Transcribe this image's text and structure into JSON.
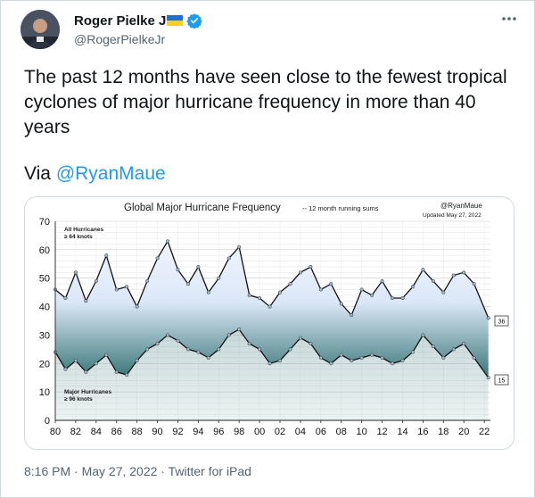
{
  "tweet": {
    "author_name": "Roger Pielke Jr.",
    "author_handle": "@RogerPielkeJr",
    "text": "The past 12 months have seen close to the fewest tropical cyclones of major hurricane frequency in more than 40 years",
    "via_label": "Via",
    "via_mention": "@RyanMaue",
    "timestamp": "8:16 PM · May 27, 2022 · Twitter for iPad",
    "colors": {
      "link": "#1d9bf0",
      "muted": "#536471",
      "flag_blue": "#1f6fd1",
      "flag_yellow": "#f6d21c",
      "verified": "#1d9bf0"
    },
    "icons": [
      "avatar-photo",
      "ukraine-flag-icon",
      "verified-badge-icon",
      "more-options-icon"
    ]
  },
  "chart_data": {
    "type": "area",
    "title": "Global Major Hurricane Frequency",
    "subtitle": "-- 12 month running sums",
    "credit": "@RyanMaue",
    "updated": "Updated May 27, 2022",
    "ylim": [
      0,
      70
    ],
    "yticks": [
      0,
      10,
      20,
      30,
      40,
      50,
      60,
      70
    ],
    "xticks": [
      "80",
      "82",
      "84",
      "86",
      "88",
      "90",
      "92",
      "94",
      "96",
      "98",
      "00",
      "02",
      "04",
      "06",
      "08",
      "10",
      "12",
      "14",
      "16",
      "18",
      "20",
      "22"
    ],
    "grid": true,
    "series": [
      {
        "name": "All Hurricanes",
        "label_lines": [
          "All Hurricanes",
          "≥ 64 knots"
        ],
        "end_value_label": "36",
        "x": [
          1980,
          1981,
          1982,
          1983,
          1984,
          1985,
          1986,
          1987,
          1988,
          1989,
          1990,
          1991,
          1992,
          1993,
          1994,
          1995,
          1996,
          1997,
          1998,
          1999,
          2000,
          2001,
          2002,
          2003,
          2004,
          2005,
          2006,
          2007,
          2008,
          2009,
          2010,
          2011,
          2012,
          2013,
          2014,
          2015,
          2016,
          2017,
          2018,
          2019,
          2020,
          2021,
          2022.4
        ],
        "values": [
          46,
          43,
          52,
          42,
          49,
          58,
          46,
          47,
          40,
          49,
          57,
          63,
          53,
          48,
          54,
          45,
          50,
          57,
          61,
          44,
          43,
          40,
          45,
          48,
          52,
          54,
          46,
          48,
          41,
          37,
          46,
          44,
          49,
          43,
          43,
          47,
          53,
          49,
          45,
          51,
          52,
          48,
          36
        ]
      },
      {
        "name": "Major Hurricanes",
        "label_lines": [
          "Major Hurricanes",
          "≥ 96 knots"
        ],
        "end_value_label": "15",
        "x": [
          1980,
          1981,
          1982,
          1983,
          1984,
          1985,
          1986,
          1987,
          1988,
          1989,
          1990,
          1991,
          1992,
          1993,
          1994,
          1995,
          1996,
          1997,
          1998,
          1999,
          2000,
          2001,
          2002,
          2003,
          2004,
          2005,
          2006,
          2007,
          2008,
          2009,
          2010,
          2011,
          2012,
          2013,
          2014,
          2015,
          2016,
          2017,
          2018,
          2019,
          2020,
          2021,
          2022.4
        ],
        "values": [
          24,
          18,
          21,
          17,
          20,
          23,
          17,
          16,
          21,
          25,
          27,
          30,
          28,
          25,
          24,
          22,
          25,
          30,
          32,
          27,
          25,
          20,
          21,
          25,
          29,
          27,
          22,
          20,
          23,
          21,
          22,
          23,
          22,
          20,
          21,
          24,
          30,
          26,
          22,
          25,
          27,
          22,
          15
        ]
      }
    ]
  }
}
